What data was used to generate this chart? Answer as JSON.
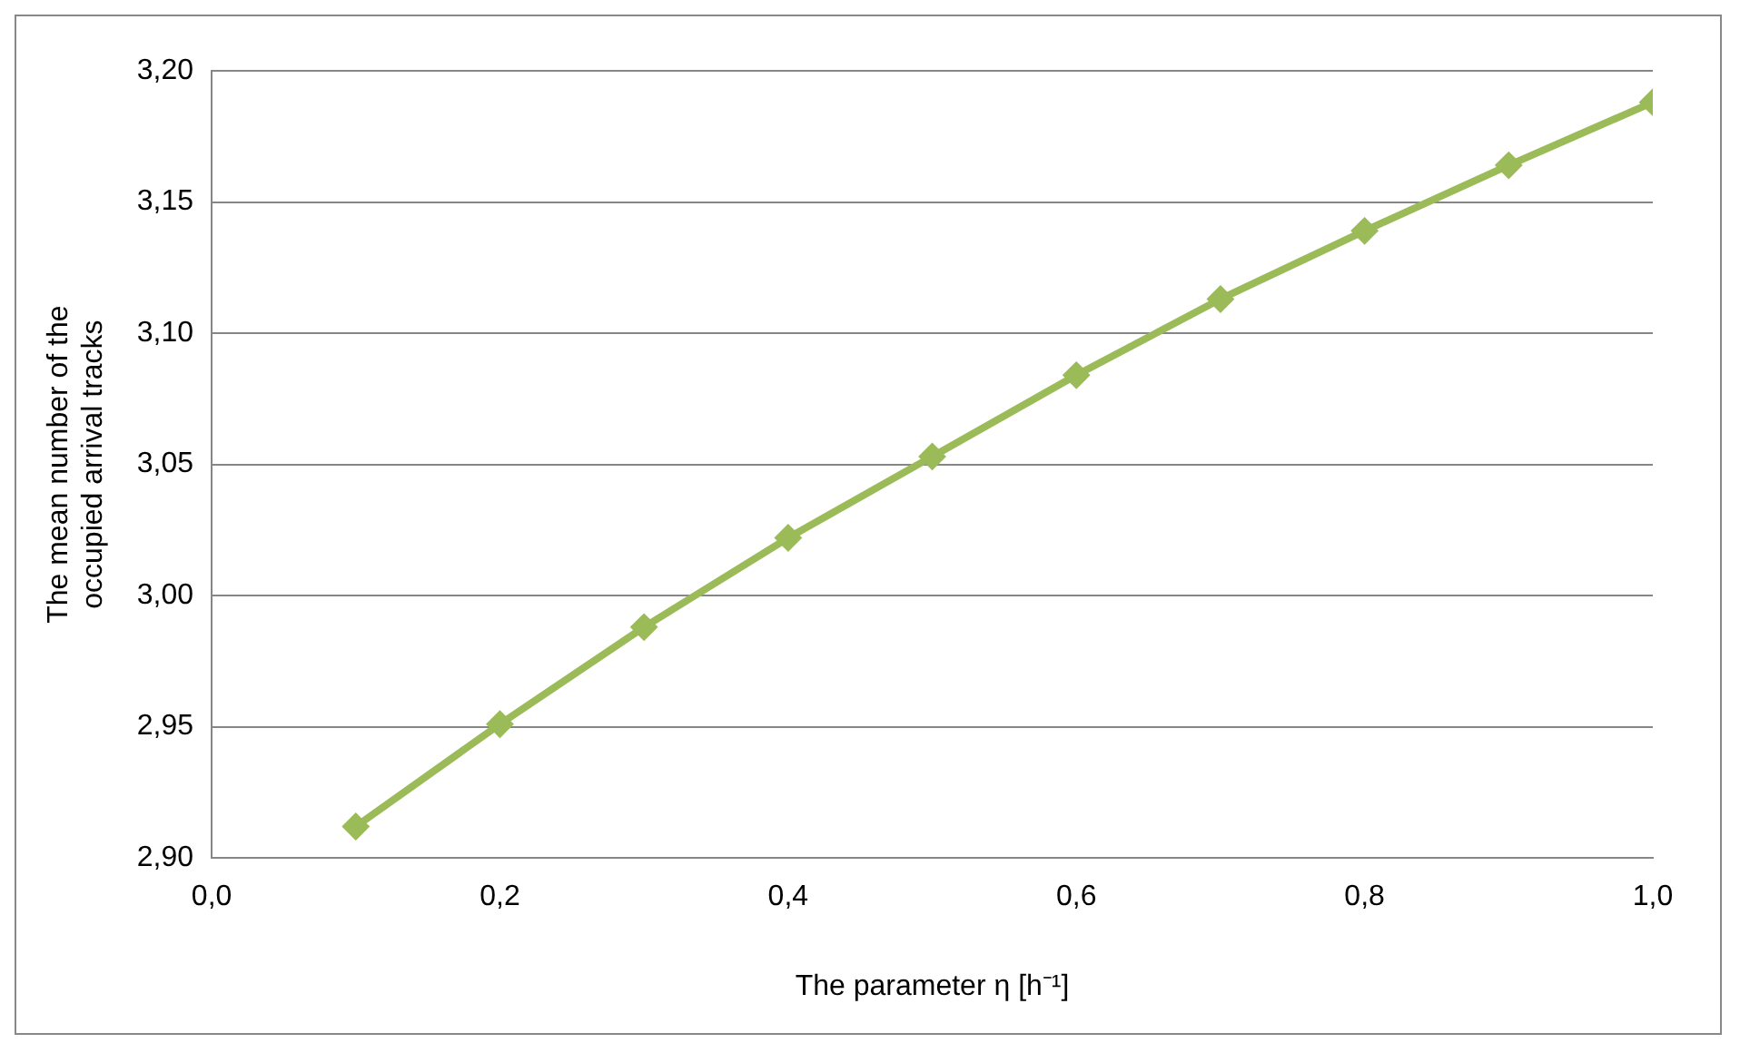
{
  "chart_data": {
    "type": "line",
    "xlabel": "The parameter η [h⁻¹]",
    "ylabel": "The mean number of the occupied arrival tracks",
    "x": [
      0.1,
      0.2,
      0.3,
      0.4,
      0.5,
      0.6,
      0.7,
      0.8,
      0.9,
      1.0
    ],
    "series": [
      {
        "color": "#9bbb59",
        "values": [
          2.912,
          2.951,
          2.988,
          3.022,
          3.053,
          3.084,
          3.113,
          3.139,
          3.164,
          3.188
        ]
      }
    ],
    "xlim": [
      0,
      1
    ],
    "xticks": [
      {
        "value": 0,
        "label": "0,0"
      },
      {
        "value": 0.2,
        "label": "0,2"
      },
      {
        "value": 0.4,
        "label": "0,4"
      },
      {
        "value": 0.6,
        "label": "0,6"
      },
      {
        "value": 0.8,
        "label": "0,8"
      },
      {
        "value": 1,
        "label": "1,0"
      }
    ],
    "ylim": [
      2.9,
      3.2
    ],
    "yticks": [
      {
        "value": 2.9,
        "label": "2,90"
      },
      {
        "value": 2.95,
        "label": "2,95"
      },
      {
        "value": 3.0,
        "label": "3,00"
      },
      {
        "value": 3.05,
        "label": "3,05"
      },
      {
        "value": 3.1,
        "label": "3,10"
      },
      {
        "value": 3.15,
        "label": "3,15"
      },
      {
        "value": 3.2,
        "label": "3,20"
      }
    ],
    "grid": "y",
    "legend": false,
    "marker": "diamond",
    "line_style": "solid"
  }
}
